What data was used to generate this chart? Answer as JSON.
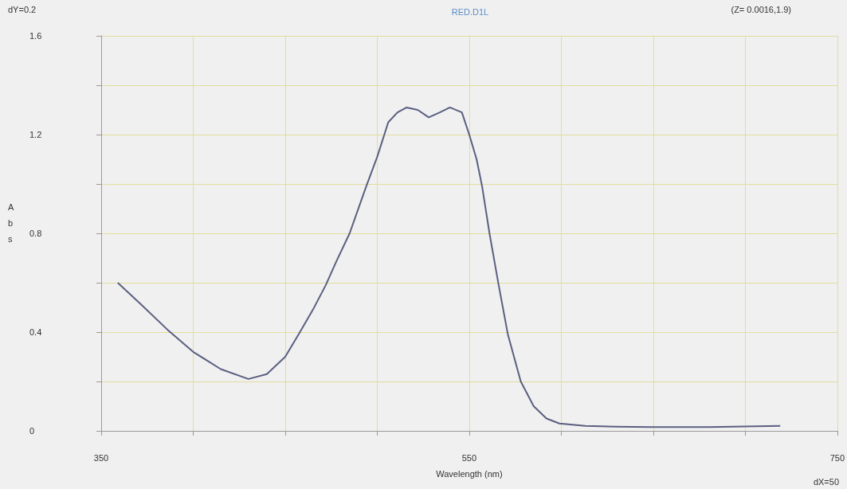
{
  "chart_data": {
    "type": "line",
    "title": "RED.D1L",
    "xlabel": "Wavelength (nm)",
    "ylabel": "Abs",
    "annotations": [
      "dY=0.2",
      "(Z= 0.0016,1.9)",
      "dX=50"
    ],
    "series": [
      {
        "color": "#5a5f80",
        "x": [
          359,
          372,
          386,
          400,
          415,
          430,
          440,
          450,
          458,
          465,
          472,
          478,
          485,
          494,
          500,
          506,
          511,
          516,
          522,
          528,
          534,
          539.5,
          546,
          550,
          554,
          557,
          561,
          566,
          571,
          578,
          585,
          592,
          599,
          606,
          613,
          630,
          649,
          680,
          719
        ],
        "values": [
          0.6,
          0.51,
          0.41,
          0.32,
          0.25,
          0.21,
          0.23,
          0.3,
          0.4,
          0.49,
          0.59,
          0.69,
          0.8,
          0.99,
          1.11,
          1.25,
          1.29,
          1.31,
          1.3,
          1.27,
          1.29,
          1.31,
          1.29,
          1.2,
          1.1,
          0.99,
          0.8,
          0.59,
          0.39,
          0.2,
          0.1,
          0.05,
          0.03,
          0.025,
          0.02,
          0.017,
          0.015,
          0.015,
          0.02
        ]
      }
    ],
    "xlim": [
      350,
      750
    ],
    "xticks": [
      350,
      {
        "value": 400,
        "label": null
      },
      {
        "value": 450,
        "label": null
      },
      {
        "value": 500,
        "label": null
      },
      550,
      {
        "value": 600,
        "label": null
      },
      {
        "value": 650,
        "label": null
      },
      {
        "value": 700,
        "label": null
      },
      750
    ],
    "ylim": [
      0,
      1.6
    ],
    "yticks": [
      0,
      {
        "value": 0.2,
        "label": null
      },
      0.4,
      {
        "value": 0.6,
        "label": null
      },
      0.8,
      {
        "value": 1.0,
        "label": null
      },
      1.2,
      {
        "value": 1.4,
        "label": null
      },
      1.6
    ],
    "grid": true,
    "marker": "none",
    "line_style": "solid"
  }
}
